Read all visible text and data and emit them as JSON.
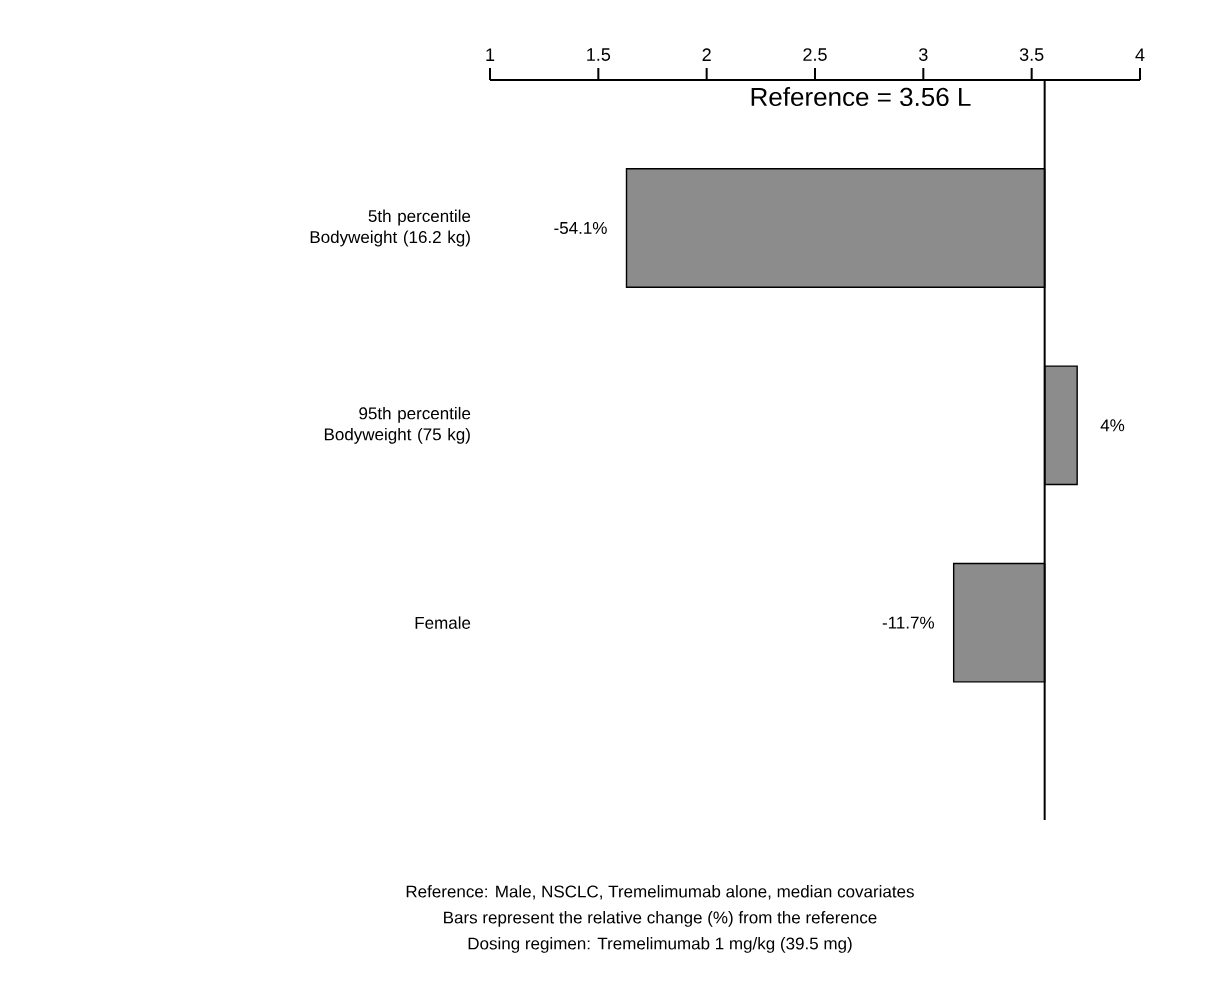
{
  "chart_data": {
    "type": "bar",
    "orientation": "horizontal",
    "categories": [
      "5th percentile Bodyweight (16.2 kg)",
      "95th percentile Bodyweight (75 kg)",
      "Female"
    ],
    "base": [
      3.56,
      3.56,
      3.56
    ],
    "values": [
      -1.93,
      0.15,
      -0.42
    ],
    "color": "#8c8c8c",
    "xlim": [
      1,
      4
    ],
    "xticks": [
      1,
      1.5,
      2,
      2.5,
      3,
      3.5,
      4
    ],
    "ref_lines": [
      {
        "axis": "x",
        "value": 3.56,
        "label": "Reference = 3.56 L"
      }
    ],
    "annotations": [
      {
        "text": "-54.1%",
        "x": 1.63,
        "y": "5th percentile Bodyweight (16.2 kg)"
      },
      {
        "text": "4%",
        "x": 3.71,
        "y": "95th percentile Bodyweight (75 kg)"
      },
      {
        "text": "-11.7%",
        "x": 3.14,
        "y": "Female"
      },
      "Reference: Male, NSCLC, Tremelimumab alone, median covariates",
      "Bars represent the relative change (%) from the reference",
      "Dosing regimen: Tremelimumab 1 mg/kg (39.5 mg)"
    ]
  }
}
